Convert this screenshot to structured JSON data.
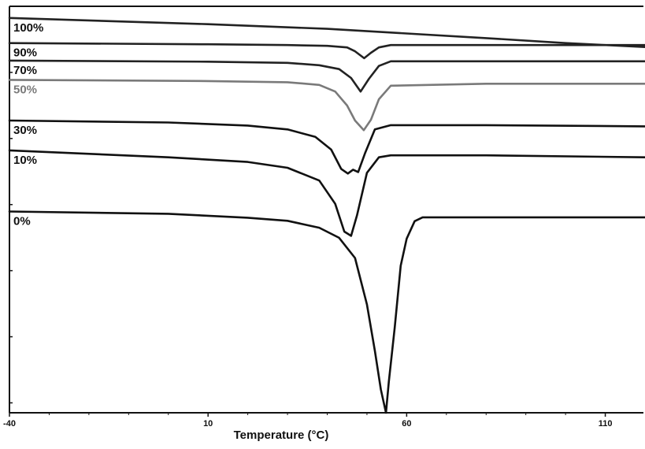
{
  "chart_data": {
    "type": "line",
    "title": "",
    "xlabel": "Temperature (°C)",
    "ylabel": "",
    "xlim": [
      -40,
      120
    ],
    "x_ticks": [
      -40,
      10,
      60,
      110
    ],
    "x_tick_labels": [
      "-40",
      "10",
      "60",
      "110"
    ],
    "grid": false,
    "legend": "none",
    "series": [
      {
        "name": "100%",
        "color": "#222222",
        "x": [
          -40,
          10,
          40,
          60,
          80,
          100,
          120
        ],
        "y": [
          1.0,
          0.984,
          0.972,
          0.96,
          0.948,
          0.935,
          0.925
        ]
      },
      {
        "name": "90%",
        "color": "#222222",
        "x": [
          -40,
          10,
          30,
          40,
          45,
          47,
          49.3,
          51,
          53,
          56,
          80,
          120
        ],
        "y": [
          0.935,
          0.932,
          0.93,
          0.928,
          0.924,
          0.914,
          0.896,
          0.91,
          0.924,
          0.93,
          0.93,
          0.93
        ]
      },
      {
        "name": "70%",
        "color": "#222222",
        "x": [
          -40,
          10,
          30,
          38,
          43,
          46,
          48.4,
          50.5,
          53,
          56,
          80,
          120
        ],
        "y": [
          0.89,
          0.887,
          0.884,
          0.878,
          0.868,
          0.845,
          0.81,
          0.843,
          0.876,
          0.888,
          0.888,
          0.888
        ]
      },
      {
        "name": "50%",
        "color": "#7a7a7a",
        "x": [
          -40,
          10,
          30,
          38,
          42,
          45,
          47,
          49.2,
          51,
          53,
          56,
          80,
          120
        ],
        "y": [
          0.84,
          0.837,
          0.834,
          0.827,
          0.81,
          0.774,
          0.735,
          0.71,
          0.737,
          0.79,
          0.825,
          0.83,
          0.83
        ]
      },
      {
        "name": "30%",
        "color": "#111111",
        "x": [
          -40,
          0,
          20,
          30,
          37,
          41,
          43.5,
          45.2,
          46.5,
          47.8,
          49.5,
          52,
          56,
          80,
          120
        ],
        "y": [
          0.735,
          0.73,
          0.722,
          0.712,
          0.693,
          0.66,
          0.61,
          0.598,
          0.608,
          0.602,
          0.65,
          0.712,
          0.723,
          0.723,
          0.72
        ]
      },
      {
        "name": "10%",
        "color": "#111111",
        "x": [
          -40,
          0,
          20,
          30,
          38,
          42,
          44.3,
          46,
          47.5,
          50,
          53,
          56,
          80,
          120
        ],
        "y": [
          0.658,
          0.64,
          0.628,
          0.613,
          0.58,
          0.52,
          0.448,
          0.437,
          0.49,
          0.6,
          0.64,
          0.645,
          0.645,
          0.64
        ]
      },
      {
        "name": "0%",
        "color": "#111111",
        "x": [
          -40,
          0,
          20,
          30,
          38,
          43,
          47,
          50,
          52,
          53.5,
          54.8,
          55.5,
          57,
          58.5,
          60,
          62,
          64,
          80,
          120
        ],
        "y": [
          0.5,
          0.494,
          0.484,
          0.476,
          0.458,
          0.432,
          0.38,
          0.26,
          0.14,
          0.04,
          -0.02,
          0.06,
          0.2,
          0.36,
          0.43,
          0.475,
          0.485,
          0.485,
          0.485
        ]
      }
    ]
  }
}
